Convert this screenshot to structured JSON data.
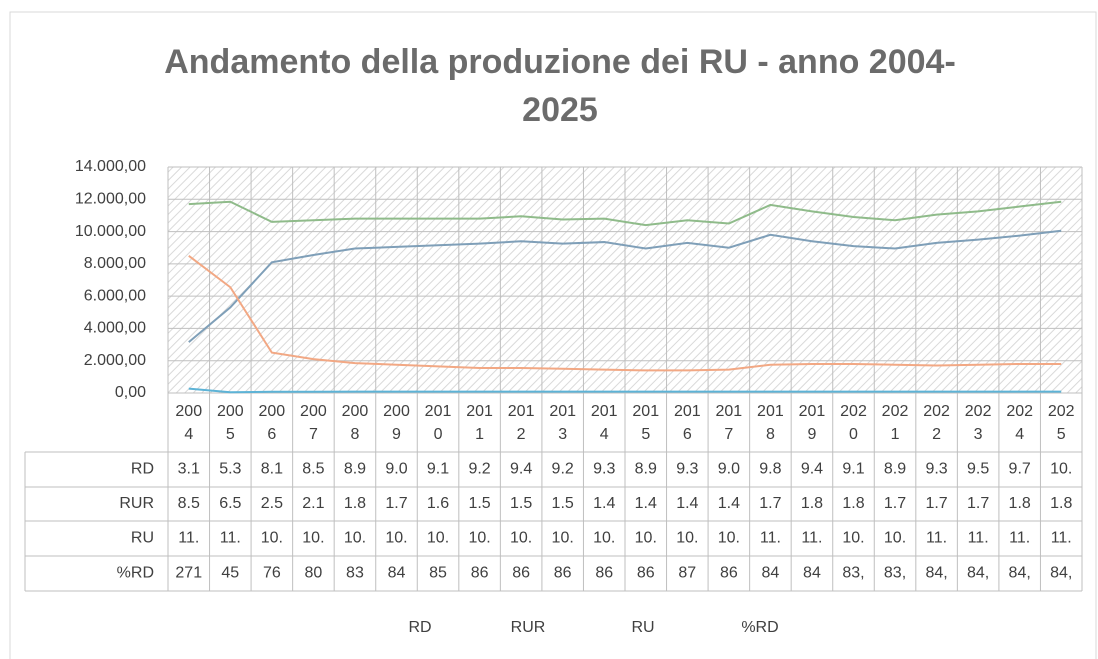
{
  "chart_data": {
    "type": "line",
    "title": "Andamento della produzione dei RU - anno 2004-2025",
    "categories": [
      "2004",
      "2005",
      "2006",
      "2007",
      "2008",
      "2009",
      "2010",
      "2011",
      "2012",
      "2013",
      "2014",
      "2015",
      "2016",
      "2017",
      "2018",
      "2019",
      "2020",
      "2021",
      "2022",
      "2023",
      "2024",
      "2025"
    ],
    "series": [
      {
        "name": "RD",
        "color": "#7f9fb8",
        "values": [
          3150,
          5300,
          8100,
          8550,
          8950,
          9050,
          9150,
          9250,
          9400,
          9250,
          9350,
          8950,
          9300,
          9000,
          9800,
          9400,
          9100,
          8950,
          9300,
          9500,
          9750,
          10050
        ],
        "value_labels": [
          "3.1",
          "5.3",
          "8.1",
          "8.5",
          "8.9",
          "9.0",
          "9.1",
          "9.2",
          "9.4",
          "9.2",
          "9.3",
          "8.9",
          "9.3",
          "9.0",
          "9.8",
          "9.4",
          "9.1",
          "8.9",
          "9.3",
          "9.5",
          "9.7",
          "10."
        ]
      },
      {
        "name": "RUR",
        "color": "#f2a884",
        "values": [
          8500,
          6550,
          2500,
          2100,
          1850,
          1750,
          1650,
          1550,
          1550,
          1500,
          1450,
          1400,
          1400,
          1450,
          1750,
          1800,
          1800,
          1750,
          1700,
          1750,
          1800,
          1800
        ],
        "value_labels": [
          "8.5",
          "6.5",
          "2.5",
          "2.1",
          "1.8",
          "1.7",
          "1.6",
          "1.5",
          "1.5",
          "1.5",
          "1.4",
          "1.4",
          "1.4",
          "1.4",
          "1.7",
          "1.8",
          "1.8",
          "1.7",
          "1.7",
          "1.7",
          "1.8",
          "1.8"
        ]
      },
      {
        "name": "RU",
        "color": "#8fbb8a",
        "values": [
          11700,
          11850,
          10600,
          10700,
          10800,
          10800,
          10800,
          10800,
          10950,
          10750,
          10800,
          10400,
          10700,
          10500,
          11650,
          11250,
          10900,
          10700,
          11050,
          11250,
          11550,
          11850
        ],
        "value_labels": [
          "11.",
          "11.",
          "10.",
          "10.",
          "10.",
          "10.",
          "10.",
          "10.",
          "10.",
          "10.",
          "10.",
          "10.",
          "10.",
          "10.",
          "11.",
          "11.",
          "10.",
          "10.",
          "11.",
          "11.",
          "11.",
          "11."
        ]
      },
      {
        "name": "%RD",
        "color": "#5db3d6",
        "values": [
          271,
          45,
          76,
          80,
          83,
          84,
          85,
          86,
          86,
          86,
          86,
          86,
          87,
          86,
          84,
          84,
          83.5,
          83.2,
          84.1,
          84.3,
          84.5,
          84.2
        ],
        "value_labels": [
          "271",
          "45",
          "76",
          "80",
          "83",
          "84",
          "85",
          "86",
          "86",
          "86",
          "86",
          "86",
          "87",
          "86",
          "84",
          "84",
          "83,",
          "83,",
          "84,",
          "84,",
          "84,",
          "84,"
        ]
      }
    ],
    "ylim": [
      0,
      14000
    ],
    "yticks": [
      {
        "value": 0,
        "label": "0,00"
      },
      {
        "value": 2000,
        "label": "2.000,00"
      },
      {
        "value": 4000,
        "label": "4.000,00"
      },
      {
        "value": 6000,
        "label": "6.000,00"
      },
      {
        "value": 8000,
        "label": "8.000,00"
      },
      {
        "value": 10000,
        "label": "10.000,00"
      },
      {
        "value": 12000,
        "label": "12.000,00"
      },
      {
        "value": 14000,
        "label": "14.000,00"
      }
    ],
    "grid": true
  }
}
